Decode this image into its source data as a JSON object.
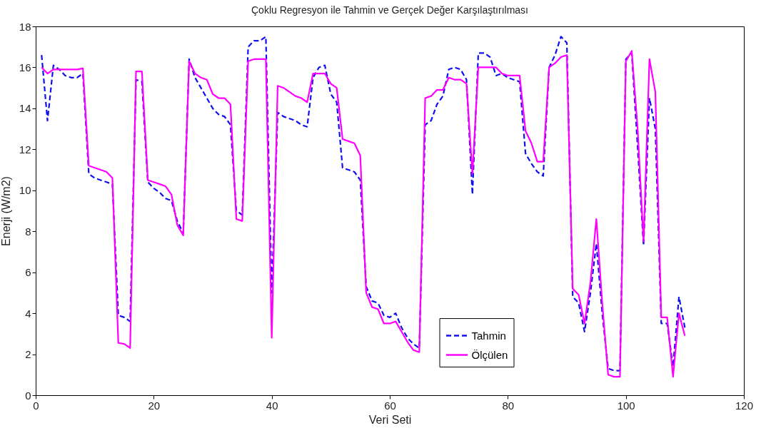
{
  "chart_data": {
    "type": "line",
    "title": "Çoklu Regresyon ile Tahmin ve Gerçek Değer Karşılaştırılması",
    "xlabel": "Veri Seti",
    "ylabel": "Enerji (W/m2)",
    "x": [
      1,
      2,
      3,
      4,
      5,
      6,
      7,
      8,
      9,
      10,
      11,
      12,
      13,
      14,
      15,
      16,
      17,
      18,
      19,
      20,
      21,
      22,
      23,
      24,
      25,
      26,
      27,
      28,
      29,
      30,
      31,
      32,
      33,
      34,
      35,
      36,
      37,
      38,
      39,
      40,
      41,
      42,
      43,
      44,
      45,
      46,
      47,
      48,
      49,
      50,
      51,
      52,
      53,
      54,
      55,
      56,
      57,
      58,
      59,
      60,
      61,
      62,
      63,
      64,
      65,
      66,
      67,
      68,
      69,
      70,
      71,
      72,
      73,
      74,
      75,
      76,
      77,
      78,
      79,
      80,
      81,
      82,
      83,
      84,
      85,
      86,
      87,
      88,
      89,
      90,
      91,
      92,
      93,
      94,
      95,
      96,
      97,
      98,
      99,
      100,
      101,
      102,
      103,
      104,
      105,
      106,
      107,
      108,
      109,
      110
    ],
    "series": [
      {
        "name": "Tahmin",
        "color": "#1010f0",
        "line_style": "dashed",
        "values": [
          16.6,
          13.4,
          16.1,
          15.9,
          15.6,
          15.5,
          15.5,
          15.7,
          10.8,
          10.6,
          10.5,
          10.4,
          10.3,
          3.9,
          3.8,
          3.6,
          15.4,
          15.3,
          10.4,
          10.1,
          9.9,
          9.6,
          9.5,
          8.5,
          7.9,
          16.4,
          15.5,
          15.0,
          14.5,
          14.0,
          13.7,
          13.6,
          13.2,
          9.0,
          8.8,
          17.0,
          17.3,
          17.3,
          17.5,
          5.0,
          13.8,
          13.6,
          13.5,
          13.4,
          13.2,
          13.1,
          15.5,
          16.0,
          16.1,
          14.7,
          14.3,
          11.1,
          11.0,
          10.9,
          10.5,
          5.3,
          4.6,
          4.5,
          3.9,
          3.8,
          4.0,
          3.3,
          2.8,
          2.5,
          2.3,
          13.2,
          13.4,
          14.2,
          14.6,
          15.9,
          16.0,
          15.9,
          15.4,
          9.8,
          16.7,
          16.7,
          16.5,
          15.6,
          15.7,
          15.5,
          15.4,
          15.3,
          11.8,
          11.3,
          10.9,
          10.7,
          16.0,
          16.6,
          17.5,
          17.2,
          4.8,
          4.5,
          3.1,
          5.0,
          7.4,
          4.0,
          1.3,
          1.2,
          1.2,
          16.4,
          16.7,
          12.1,
          7.3,
          14.5,
          13.0,
          3.5,
          3.5,
          1.4,
          4.8,
          3.3
        ]
      },
      {
        "name": "Ölçülen",
        "color": "#ff00ff",
        "line_style": "solid",
        "values": [
          16.0,
          15.7,
          15.9,
          15.9,
          15.9,
          15.9,
          15.9,
          15.95,
          11.2,
          11.1,
          11.0,
          10.9,
          10.6,
          2.55,
          2.5,
          2.3,
          15.8,
          15.8,
          10.5,
          10.4,
          10.3,
          10.2,
          9.8,
          8.3,
          7.8,
          16.3,
          15.7,
          15.5,
          15.4,
          14.7,
          14.5,
          14.5,
          14.2,
          8.6,
          8.5,
          16.3,
          16.4,
          16.4,
          16.4,
          2.8,
          15.1,
          15.0,
          14.8,
          14.6,
          14.5,
          14.3,
          15.7,
          15.7,
          15.7,
          15.2,
          15.0,
          12.5,
          12.4,
          12.3,
          11.7,
          5.0,
          4.3,
          4.2,
          3.5,
          3.5,
          3.6,
          3.1,
          2.6,
          2.2,
          2.1,
          14.5,
          14.6,
          14.9,
          14.9,
          15.5,
          15.4,
          15.4,
          15.2,
          10.8,
          16.0,
          16.0,
          16.0,
          16.0,
          15.7,
          15.6,
          15.6,
          15.6,
          12.9,
          12.3,
          11.4,
          11.4,
          16.0,
          16.2,
          16.5,
          16.6,
          5.2,
          4.9,
          3.5,
          5.5,
          8.6,
          4.5,
          1.0,
          0.9,
          0.9,
          16.3,
          16.8,
          13.0,
          7.5,
          16.4,
          14.8,
          3.8,
          3.8,
          0.9,
          4.0,
          2.9
        ]
      }
    ],
    "xlim": [
      0,
      120
    ],
    "xticks": [
      0,
      20,
      40,
      60,
      80,
      100,
      120
    ],
    "ylim": [
      0,
      18
    ],
    "yticks": [
      0,
      2,
      4,
      6,
      8,
      10,
      12,
      14,
      16,
      18
    ],
    "grid": false,
    "legend": "bottom right"
  }
}
